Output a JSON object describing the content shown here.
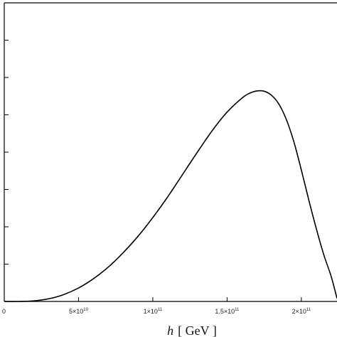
{
  "chart_data": {
    "type": "line",
    "title": "",
    "xlabel_var": "h",
    "xlabel_unit": "[ GeV ]",
    "ylabel": "",
    "xlim": [
      0,
      224000000000
    ],
    "ylim": [
      0,
      1
    ],
    "grid": false,
    "x_ticks": [
      {
        "value": 0,
        "mantissa": "0",
        "exponent": ""
      },
      {
        "value": 50000000000,
        "mantissa": "5×10",
        "exponent": "10"
      },
      {
        "value": 100000000000,
        "mantissa": "1×10",
        "exponent": "11"
      },
      {
        "value": 150000000000,
        "mantissa": "1.5×10",
        "exponent": "11"
      },
      {
        "value": 200000000000,
        "mantissa": "2×10",
        "exponent": "11"
      }
    ],
    "y_tick_count": 8,
    "series": [
      {
        "color": "#000000",
        "x": [
          0,
          10000000000,
          20000000000,
          30000000000,
          40000000000,
          50000000000,
          60000000000,
          70000000000,
          80000000000,
          90000000000,
          100000000000,
          110000000000,
          120000000000,
          130000000000,
          140000000000,
          150000000000,
          160000000000,
          165000000000,
          170000000000,
          175000000000,
          180000000000,
          185000000000,
          190000000000,
          195000000000,
          200000000000,
          205000000000,
          210000000000,
          215000000000,
          220000000000,
          224000000000
        ],
        "y": [
          0,
          0,
          0.002,
          0.009,
          0.023,
          0.045,
          0.076,
          0.115,
          0.163,
          0.218,
          0.281,
          0.35,
          0.425,
          0.5,
          0.572,
          0.634,
          0.681,
          0.697,
          0.705,
          0.704,
          0.69,
          0.66,
          0.608,
          0.534,
          0.44,
          0.34,
          0.245,
          0.158,
          0.085,
          0.01
        ]
      }
    ]
  }
}
